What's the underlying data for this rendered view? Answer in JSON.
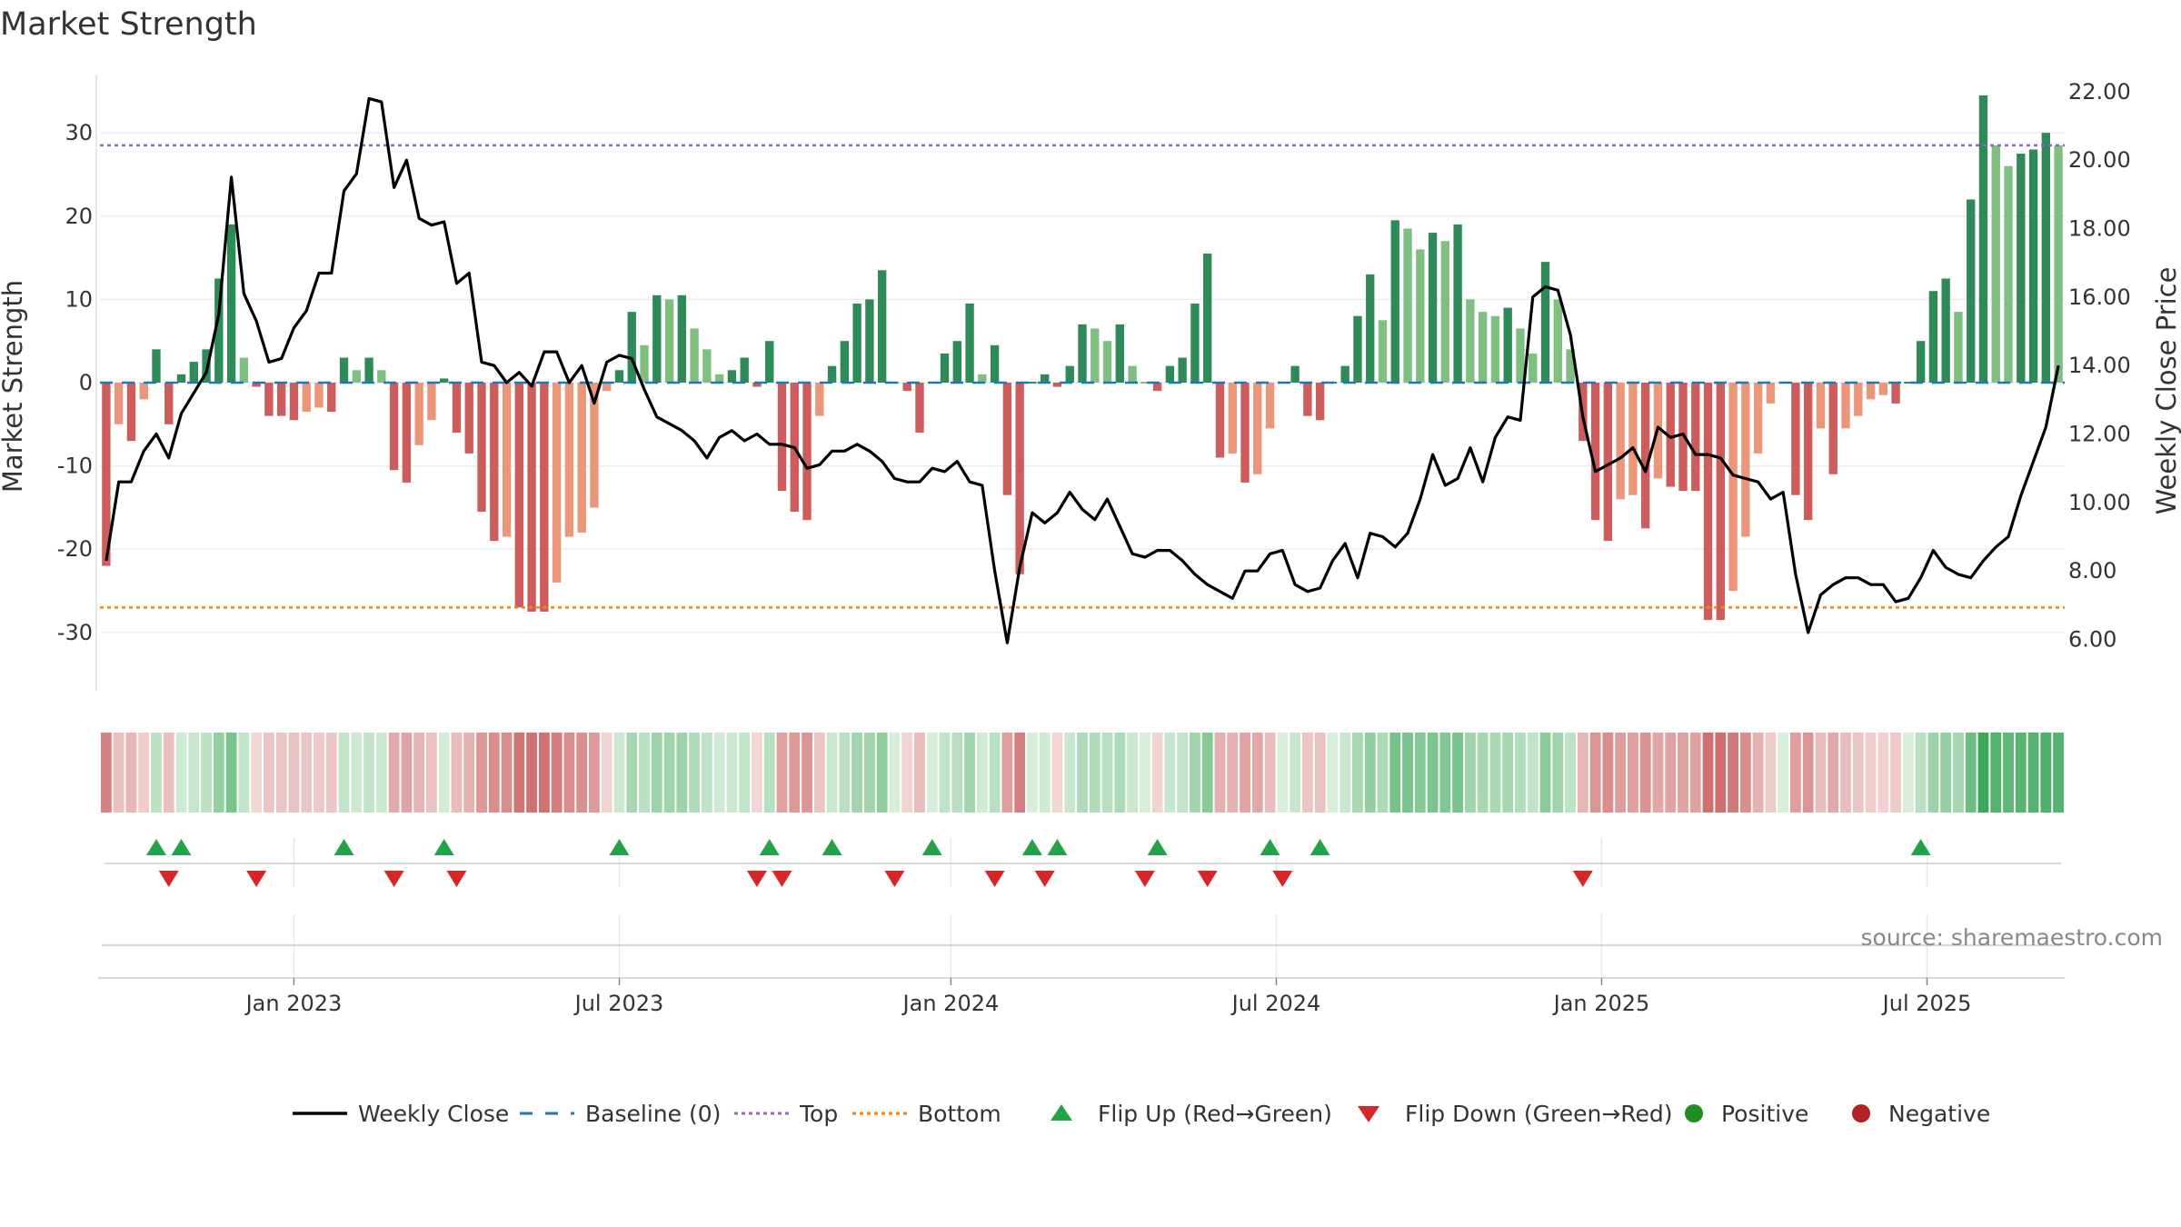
{
  "chart_data": {
    "type": "bar",
    "title": "Market Strength",
    "ylabel_left": "Market Strength",
    "ylabel_right": "Weekly Close Price",
    "ylim_left": [
      -37,
      37
    ],
    "ylim_right": [
      4.5,
      22.5
    ],
    "yticks_left": [
      30,
      20,
      10,
      0,
      -10,
      -20,
      -30
    ],
    "yticks_right": [
      "22.00",
      "20.00",
      "18.00",
      "16.00",
      "14.00",
      "12.00",
      "10.00",
      "8.00",
      "6.00"
    ],
    "yticks_right_values": [
      22,
      20,
      18,
      16,
      14,
      12,
      10,
      8,
      6
    ],
    "x_labels": [
      "Jan 2023",
      "Jul 2023",
      "Jan 2024",
      "Jul 2024",
      "Jan 2025",
      "Jul 2025"
    ],
    "x_label_weeks": [
      15,
      41,
      67.5,
      93.5,
      119.5,
      145.5
    ],
    "total_weeks": 157,
    "top_line": 28.5,
    "bottom_line": -27,
    "source": "source: sharemaestro.com",
    "strength": [
      -22,
      -5,
      -7,
      -2,
      4,
      -5,
      1,
      2.5,
      4,
      12.5,
      19,
      3,
      -0.5,
      -4,
      -4,
      -4.5,
      -3.5,
      -3,
      -3.5,
      3,
      1.5,
      3,
      1.5,
      -10.5,
      -12,
      -7.5,
      -4.5,
      0.5,
      -6,
      -8.5,
      -15.5,
      -19,
      -18.5,
      -27,
      -27.5,
      -27.5,
      -24,
      -18.5,
      -18,
      -15,
      -1,
      1.5,
      8.5,
      4.5,
      10.5,
      10,
      10.5,
      6.5,
      4,
      1,
      1.5,
      3,
      -0.5,
      5,
      -13,
      -15.5,
      -16.5,
      -4,
      2,
      5,
      9.5,
      10,
      13.5,
      0,
      -1,
      -6,
      0,
      3.5,
      5,
      9.5,
      1,
      4.5,
      -13.5,
      -23,
      0,
      1,
      -0.5,
      2,
      7,
      6.5,
      5,
      7,
      2,
      0,
      -1,
      2,
      3,
      9.5,
      15.5,
      -9,
      -8.5,
      -12,
      -11,
      -5.5,
      0,
      2,
      -4,
      -4.5,
      0,
      2,
      8,
      13,
      7.5,
      19.5,
      18.5,
      16,
      18,
      17,
      19,
      10,
      8.5,
      8,
      9,
      6.5,
      3.5,
      14.5,
      10,
      4,
      -7,
      -16.5,
      -19,
      -14,
      -13.5,
      -17.5,
      -11.5,
      -12.5,
      -13,
      -13,
      -28.5,
      -28.5,
      -25,
      -18.5,
      -8.5,
      -2.5,
      0,
      -13.5,
      -16.5,
      -5.5,
      -11,
      -5.5,
      -4,
      -2,
      -1.5,
      -2.5,
      0,
      5,
      11,
      12.5,
      8.5,
      22,
      34.5,
      28.5,
      26,
      27.5,
      28,
      30,
      28.5
    ],
    "price": [
      8.3,
      10.6,
      10.6,
      11.5,
      12.0,
      11.3,
      12.6,
      13.2,
      13.8,
      15.5,
      19.5,
      16.1,
      15.3,
      14.1,
      14.2,
      15.1,
      15.6,
      16.7,
      16.7,
      19.1,
      19.6,
      21.8,
      21.7,
      19.2,
      20.0,
      18.3,
      18.1,
      18.2,
      16.4,
      16.7,
      14.1,
      14.0,
      13.5,
      13.8,
      13.4,
      14.4,
      14.4,
      13.5,
      14.0,
      12.9,
      14.1,
      14.3,
      14.2,
      13.3,
      12.5,
      12.3,
      12.1,
      11.8,
      11.3,
      11.9,
      12.1,
      11.8,
      12.0,
      11.7,
      11.7,
      11.6,
      11.0,
      11.1,
      11.5,
      11.5,
      11.7,
      11.5,
      11.2,
      10.7,
      10.6,
      10.6,
      11.0,
      10.9,
      11.2,
      10.6,
      10.5,
      8.0,
      5.9,
      8.1,
      9.7,
      9.4,
      9.7,
      10.3,
      9.8,
      9.5,
      10.1,
      9.3,
      8.5,
      8.4,
      8.6,
      8.6,
      8.3,
      7.9,
      7.6,
      7.4,
      7.2,
      8.0,
      8.0,
      8.5,
      8.6,
      7.6,
      7.4,
      7.5,
      8.3,
      8.8,
      7.8,
      9.1,
      9.0,
      8.7,
      9.1,
      10.1,
      11.4,
      10.5,
      10.7,
      11.6,
      10.6,
      11.9,
      12.5,
      12.4,
      16.0,
      16.3,
      16.2,
      14.9,
      12.5,
      10.9,
      11.1,
      11.3,
      11.6,
      10.9,
      12.2,
      11.9,
      12.0,
      11.4,
      11.4,
      11.3,
      10.8,
      10.7,
      10.6,
      10.1,
      10.3,
      7.9,
      6.2,
      7.3,
      7.6,
      7.8,
      7.8,
      7.6,
      7.6,
      7.1,
      7.2,
      7.8,
      8.6,
      8.1,
      7.9,
      7.8,
      8.3,
      8.7,
      9.0,
      10.2,
      11.2,
      12.2,
      14.0
    ],
    "flip_up_weeks": [
      4,
      6,
      19,
      27,
      41,
      53,
      58,
      66,
      74,
      76,
      84,
      93,
      97,
      145
    ],
    "flip_down_weeks": [
      5,
      12,
      23,
      28,
      52,
      54,
      63,
      71,
      75,
      83,
      88,
      94,
      118
    ],
    "palette": {
      "bar_pos_strong": "#2e8b57",
      "bar_pos_weak": "#7fbf7f",
      "bar_neg_strong": "#cd5c5c",
      "bar_neg_weak": "#e9967a",
      "price_line": "#000000",
      "baseline": "#1f77b4",
      "top_line": "#9467bd",
      "bottom_line": "#ff7f0e",
      "flip_up": "#22a34a",
      "flip_down": "#d62728",
      "positive": "#228b22",
      "negative": "#b22222"
    },
    "legend": [
      {
        "label": "Weekly Close",
        "kind": "line"
      },
      {
        "label": "Baseline (0)",
        "kind": "dash"
      },
      {
        "label": "Top",
        "kind": "dot-top"
      },
      {
        "label": "Bottom",
        "kind": "dot-bottom"
      },
      {
        "label": "Flip Up (Red→Green)",
        "kind": "tri-up"
      },
      {
        "label": "Flip Down (Green→Red)",
        "kind": "tri-down"
      },
      {
        "label": "Positive",
        "kind": "circle-pos"
      },
      {
        "label": "Negative",
        "kind": "circle-neg"
      }
    ]
  }
}
